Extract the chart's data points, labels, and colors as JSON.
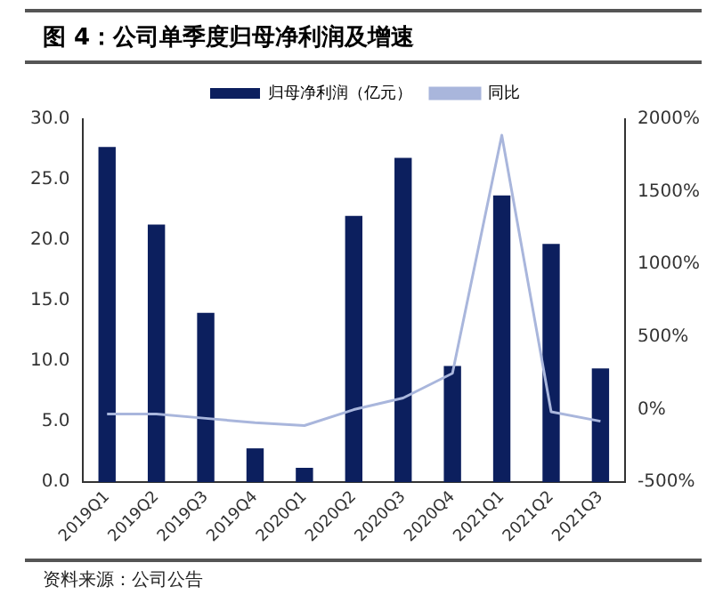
{
  "chart_data": {
    "type": "bar",
    "title": "图 4：公司单季度归母净利润及增速",
    "categories": [
      "2019Q1",
      "2019Q2",
      "2019Q3",
      "2019Q4",
      "2020Q1",
      "2020Q2",
      "2020Q3",
      "2020Q4",
      "2021Q1",
      "2021Q2",
      "2021Q3"
    ],
    "series": [
      {
        "name": "归母净利润（亿元）",
        "color": "#0c1f5e",
        "values": [
          27.7,
          21.3,
          14.0,
          2.8,
          1.2,
          22.0,
          26.8,
          9.6,
          23.7,
          19.7,
          9.4
        ]
      },
      {
        "name": "同比",
        "type": "line",
        "axis": "y2",
        "color": "#a9b6dc",
        "values": [
          -30,
          -30,
          -60,
          -90,
          -110,
          0,
          80,
          250,
          1890,
          -15,
          -80
        ]
      }
    ],
    "ylim": [
      0,
      30
    ],
    "yticks": [
      {
        "value": 0,
        "label": "0.0"
      },
      {
        "value": 5,
        "label": "5.0"
      },
      {
        "value": 10,
        "label": "10.0"
      },
      {
        "value": 15,
        "label": "15.0"
      },
      {
        "value": 20,
        "label": "20.0"
      },
      {
        "value": 25,
        "label": "25.0"
      },
      {
        "value": 30,
        "label": "30.0"
      }
    ],
    "y2lim": [
      -500,
      2000
    ],
    "y2ticks": [
      {
        "value": -500,
        "label": "-500%"
      },
      {
        "value": 0,
        "label": "0%"
      },
      {
        "value": 500,
        "label": "500%"
      },
      {
        "value": 1000,
        "label": "1000%"
      },
      {
        "value": 1500,
        "label": "1500%"
      },
      {
        "value": 2000,
        "label": "2000%"
      }
    ],
    "grid": false,
    "legend": "top",
    "marker": "none",
    "annotations": [
      "资料来源：公司公告"
    ]
  }
}
